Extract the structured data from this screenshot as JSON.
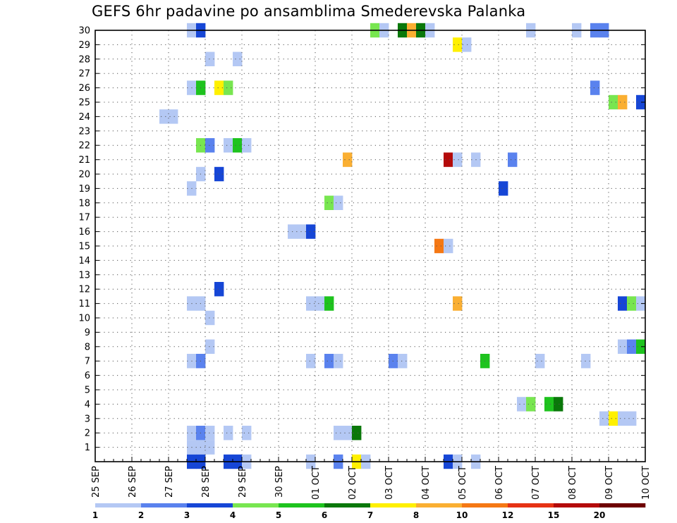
{
  "chart_data": {
    "type": "heatmap",
    "title": "GEFS 6hr padavine po ansamblima Smederevska Palanka",
    "xlabel": "",
    "ylabel": "",
    "x_tick_labels": [
      "25 SEP",
      "26 SEP",
      "27 SEP",
      "28 SEP",
      "29 SEP",
      "30 SEP",
      "01 OCT",
      "02 OCT",
      "03 OCT",
      "04 OCT",
      "05 OCT",
      "06 OCT",
      "07 OCT",
      "08 OCT",
      "09 OCT",
      "10 OCT"
    ],
    "y_tick_labels": [
      "1",
      "2",
      "3",
      "4",
      "5",
      "6",
      "7",
      "8",
      "9",
      "10",
      "11",
      "12",
      "13",
      "14",
      "15",
      "16",
      "17",
      "18",
      "19",
      "20",
      "21",
      "22",
      "23",
      "24",
      "25",
      "26",
      "27",
      "28",
      "29",
      "30"
    ],
    "x_range_steps": [
      0,
      60
    ],
    "x_step_unit": "6 h",
    "y_range": [
      0,
      30
    ],
    "grid": true,
    "legend": {
      "placement": "bottom",
      "labels": [
        "1",
        "2",
        "3",
        "4",
        "5",
        "6",
        "7",
        "8",
        "10",
        "12",
        "15",
        "20"
      ],
      "colors": [
        "#b4c8f4",
        "#5a82ee",
        "#1646d6",
        "#78e650",
        "#1ec31e",
        "#0a780a",
        "#fff000",
        "#faaf32",
        "#f57814",
        "#e63214",
        "#b40a0a",
        "#6e0000"
      ]
    },
    "cells": [
      {
        "member": 30,
        "steps": [
          10,
          11
        ],
        "values": [
          1.5,
          3.5
        ]
      },
      {
        "member": 30,
        "steps": [
          30,
          31,
          33,
          34,
          35,
          36
        ],
        "values": [
          4.5,
          1.5,
          6.5,
          9.5,
          6.5,
          1.5
        ]
      },
      {
        "member": 30,
        "steps": [
          47,
          52,
          54,
          55
        ],
        "values": [
          1.5,
          1.5,
          2.5,
          2.5
        ]
      },
      {
        "member": 29,
        "steps": [
          39,
          40
        ],
        "values": [
          7.5,
          1.5
        ]
      },
      {
        "member": 28,
        "steps": [
          12,
          15
        ],
        "values": [
          1.5,
          1.5
        ]
      },
      {
        "member": 26,
        "steps": [
          10,
          11,
          13,
          14
        ],
        "values": [
          1.5,
          5.5,
          7.5,
          4.5
        ]
      },
      {
        "member": 26,
        "steps": [
          54
        ],
        "values": [
          2.5
        ]
      },
      {
        "member": 25,
        "steps": [
          56,
          57,
          59
        ],
        "values": [
          4.5,
          8.5,
          3.5
        ]
      },
      {
        "member": 24,
        "steps": [
          7,
          8
        ],
        "values": [
          1.5,
          1.5
        ]
      },
      {
        "member": 22,
        "steps": [
          11,
          12,
          14,
          15,
          16
        ],
        "values": [
          4.5,
          2.5,
          1.5,
          5.5,
          1.5
        ]
      },
      {
        "member": 21,
        "steps": [
          27
        ],
        "values": [
          8.5
        ]
      },
      {
        "member": 21,
        "steps": [
          38,
          39,
          41,
          45
        ],
        "values": [
          15,
          1.5,
          1.5,
          2.5
        ]
      },
      {
        "member": 20,
        "steps": [
          11,
          13
        ],
        "values": [
          1.5,
          3.5
        ]
      },
      {
        "member": 19,
        "steps": [
          10
        ],
        "values": [
          1.5
        ]
      },
      {
        "member": 19,
        "steps": [
          44
        ],
        "values": [
          3.5
        ]
      },
      {
        "member": 18,
        "steps": [
          25,
          26
        ],
        "values": [
          4.5,
          1.5
        ]
      },
      {
        "member": 16,
        "steps": [
          21,
          22,
          23
        ],
        "values": [
          1.5,
          1.5,
          3.5
        ]
      },
      {
        "member": 15,
        "steps": [
          37,
          38
        ],
        "values": [
          10.5,
          1.5
        ]
      },
      {
        "member": 12,
        "steps": [
          13
        ],
        "values": [
          3.5
        ]
      },
      {
        "member": 11,
        "steps": [
          10,
          11
        ],
        "values": [
          1.5,
          1.5
        ]
      },
      {
        "member": 11,
        "steps": [
          23,
          24,
          25
        ],
        "values": [
          1.5,
          1.5,
          5.5
        ]
      },
      {
        "member": 11,
        "steps": [
          39
        ],
        "values": [
          8.5
        ]
      },
      {
        "member": 11,
        "steps": [
          57,
          58,
          59
        ],
        "values": [
          3.5,
          4.5,
          1.5
        ]
      },
      {
        "member": 10,
        "steps": [
          12
        ],
        "values": [
          1.5
        ]
      },
      {
        "member": 8,
        "steps": [
          12
        ],
        "values": [
          1.5
        ]
      },
      {
        "member": 8,
        "steps": [
          57,
          58,
          59
        ],
        "values": [
          1.5,
          2.5,
          5.5
        ]
      },
      {
        "member": 7,
        "steps": [
          10,
          11
        ],
        "values": [
          1.5,
          2.5
        ]
      },
      {
        "member": 7,
        "steps": [
          23,
          25,
          26
        ],
        "values": [
          1.5,
          2.5,
          1.5
        ]
      },
      {
        "member": 7,
        "steps": [
          32,
          33
        ],
        "values": [
          2.5,
          1.5
        ]
      },
      {
        "member": 7,
        "steps": [
          42,
          48,
          53
        ],
        "values": [
          5.5,
          1.5,
          1.5
        ]
      },
      {
        "member": 4,
        "steps": [
          46,
          47,
          49,
          50
        ],
        "values": [
          1.5,
          4.5,
          5.5,
          6.5
        ]
      },
      {
        "member": 3,
        "steps": [
          55,
          56,
          57,
          58
        ],
        "values": [
          1.5,
          7.5,
          1.5,
          1.5
        ]
      },
      {
        "member": 2,
        "steps": [
          10,
          11,
          12,
          14,
          16
        ],
        "values": [
          1.5,
          2.5,
          1.5,
          1.5,
          1.5
        ]
      },
      {
        "member": 2,
        "steps": [
          26,
          27,
          28
        ],
        "values": [
          1.5,
          1.5,
          6.5
        ]
      },
      {
        "member": 1,
        "steps": [
          10,
          11,
          12
        ],
        "values": [
          1.5,
          1.5,
          1.5
        ]
      },
      {
        "member": 0,
        "steps": [
          10,
          11,
          14,
          15,
          16
        ],
        "values": [
          3.5,
          3.5,
          3.5,
          3.5,
          1.5
        ]
      },
      {
        "member": 0,
        "steps": [
          23,
          26,
          28,
          29
        ],
        "values": [
          1.5,
          2.5,
          7.5,
          1.5
        ]
      },
      {
        "member": 0,
        "steps": [
          38,
          39,
          41
        ],
        "values": [
          3.5,
          1.5,
          1.5
        ]
      }
    ]
  }
}
